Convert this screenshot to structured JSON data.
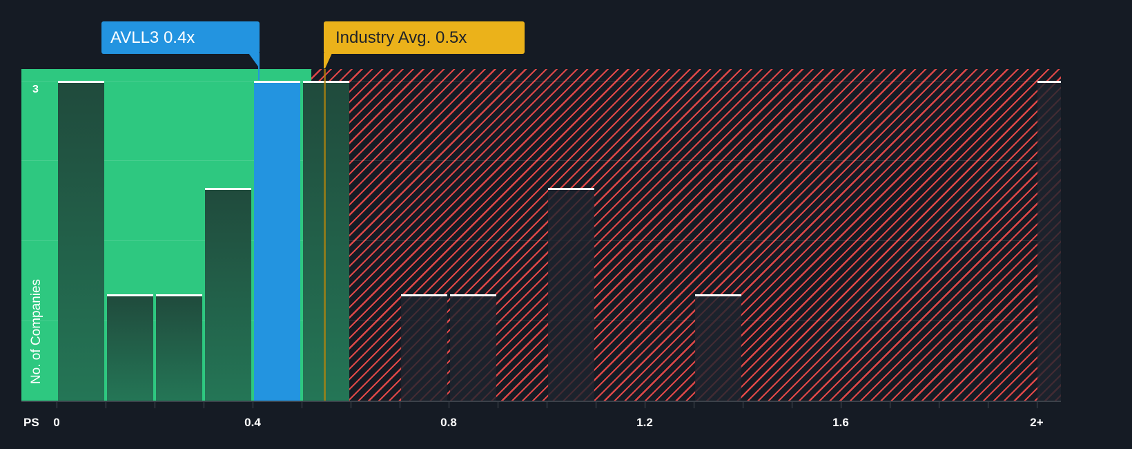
{
  "chart_data": {
    "type": "bar",
    "title": "",
    "xlabel": "PS",
    "ylabel": "No. of Companies",
    "x_ticks": [
      "0",
      "0.4",
      "0.8",
      "1.2",
      "1.6",
      "2+"
    ],
    "y_ticks": [
      "3"
    ],
    "ylim": [
      0,
      3
    ],
    "bin_width": 0.1,
    "categories": [
      "0.0-0.1",
      "0.1-0.2",
      "0.2-0.3",
      "0.3-0.4",
      "0.4-0.5",
      "0.5-0.6",
      "0.6-0.7",
      "0.7-0.8",
      "0.8-0.9",
      "0.9-1.0",
      "1.0-1.1",
      "1.1-1.2",
      "1.2-1.3",
      "1.3-1.4",
      "1.4-1.5",
      "1.5-1.6",
      "1.6-1.7",
      "1.7-1.8",
      "1.8-1.9",
      "1.9-2.0",
      "2+"
    ],
    "values": [
      3,
      1,
      1,
      2,
      3,
      3,
      0,
      1,
      1,
      0,
      2,
      0,
      0,
      1,
      0,
      0,
      0,
      0,
      0,
      0,
      3
    ],
    "highlight_bin": "0.4-0.5",
    "annotations": [
      {
        "label": "AVLL3 0.4x",
        "value": 0.4,
        "color": "#2394e0"
      },
      {
        "label": "Industry Avg. 0.5x",
        "value": 0.5,
        "color": "#ebb21a"
      }
    ],
    "zones": [
      {
        "name": "below-average",
        "color": "#2ec880",
        "from": 0,
        "to": 0.5
      },
      {
        "name": "above-average",
        "color": "#e04848",
        "pattern": "diagonal-hatch",
        "from": 0.5,
        "to": "2+"
      }
    ],
    "grid": true,
    "legend": "none"
  },
  "labels": {
    "company_callout": "AVLL3 0.4x",
    "industry_callout": "Industry Avg. 0.5x",
    "x_axis_name": "PS",
    "y_axis_name": "No. of Companies",
    "y_tick_top": "3",
    "x_ticks": [
      "0",
      "0.4",
      "0.8",
      "1.2",
      "1.6",
      "2+"
    ]
  },
  "colors": {
    "background": "#151b24",
    "green_zone": "#2ec880",
    "red_hatch": "#e04848",
    "company": "#2394e0",
    "industry": "#ebb21a"
  }
}
